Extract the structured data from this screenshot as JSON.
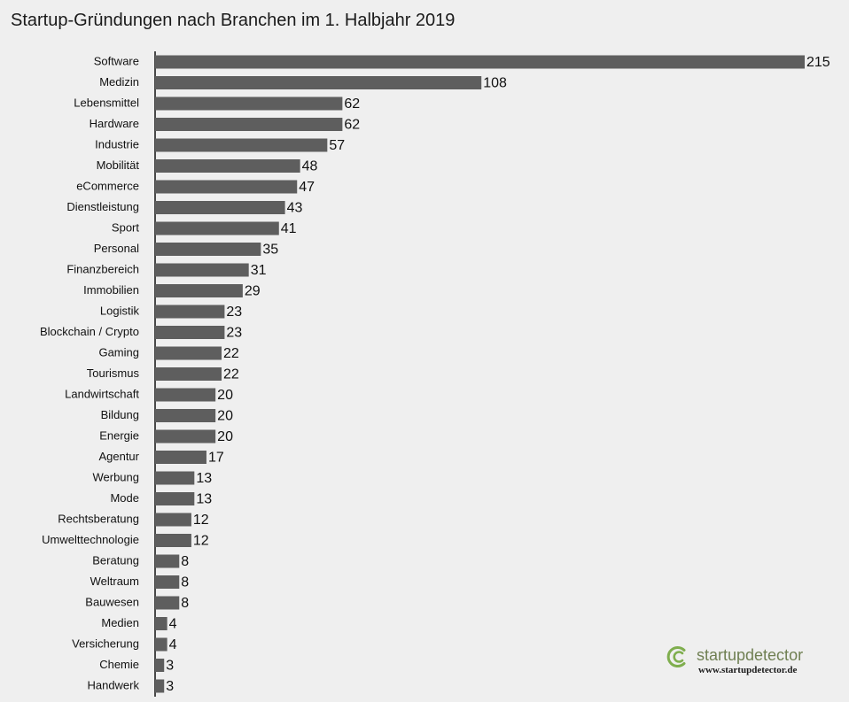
{
  "chart_data": {
    "type": "bar",
    "orientation": "horizontal",
    "title": "Startup-Gründungen nach Branchen im 1. Halbjahr 2019",
    "categories": [
      "Software",
      "Medizin",
      "Lebensmittel",
      "Hardware",
      "Industrie",
      "Mobilität",
      "eCommerce",
      "Dienstleistung",
      "Sport",
      "Personal",
      "Finanzbereich",
      "Immobilien",
      "Logistik",
      "Blockchain / Crypto",
      "Gaming",
      "Tourismus",
      "Landwirtschaft",
      "Bildung",
      "Energie",
      "Agentur",
      "Werbung",
      "Mode",
      "Rechtsberatung",
      "Umwelttechnologie",
      "Beratung",
      "Weltraum",
      "Bauwesen",
      "Medien",
      "Versicherung",
      "Chemie",
      "Handwerk"
    ],
    "values": [
      215,
      108,
      62,
      62,
      57,
      48,
      47,
      43,
      41,
      35,
      31,
      29,
      23,
      23,
      22,
      22,
      20,
      20,
      20,
      17,
      13,
      13,
      12,
      12,
      8,
      8,
      8,
      4,
      4,
      3,
      3
    ],
    "xlim": [
      0,
      215
    ],
    "grid": false,
    "bar_color": "#5e5e5e",
    "background_color": "#efefef"
  },
  "logo": {
    "name": "startupdetector",
    "url": "www.startupdetector.de",
    "color": "#6f7f52"
  }
}
